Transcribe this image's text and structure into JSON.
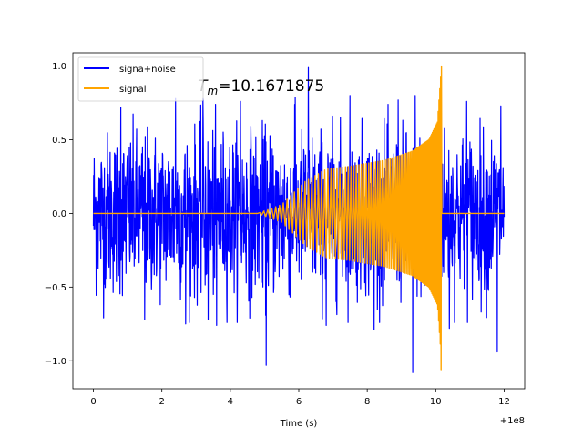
{
  "chart_data": {
    "type": "line",
    "xlabel": "Time (s)",
    "ylabel": "",
    "xlim": [
      -0.6,
      12.6
    ],
    "ylim": [
      -1.19,
      1.09
    ],
    "x_ticks": [
      0,
      2,
      4,
      6,
      8,
      10,
      12
    ],
    "y_ticks": [
      -1.0,
      -0.5,
      0.0,
      0.5,
      1.0
    ],
    "x_offset_label": "+1e8",
    "grid": false,
    "legend_position": "top-left",
    "annotation": {
      "prefix": "T",
      "subscript": "m",
      "value": "=10.1671875",
      "x": 3.05,
      "y": 0.83
    },
    "series": [
      {
        "name": "signa+noise",
        "color": "#0000ff",
        "x_range": [
          0.0,
          12.0
        ],
        "sample_step": 0.008,
        "noise_sigma": 0.27,
        "extremes": [
          {
            "x": 0.8,
            "y": 0.72
          },
          {
            "x": 1.5,
            "y": -0.72
          },
          {
            "x": 2.4,
            "y": 0.78
          },
          {
            "x": 2.7,
            "y": -0.75
          },
          {
            "x": 3.2,
            "y": 0.78
          },
          {
            "x": 3.35,
            "y": -0.72
          },
          {
            "x": 3.6,
            "y": -0.76
          },
          {
            "x": 4.3,
            "y": 0.76
          },
          {
            "x": 5.05,
            "y": -1.03
          },
          {
            "x": 5.9,
            "y": 0.79
          },
          {
            "x": 6.28,
            "y": 0.99
          },
          {
            "x": 6.8,
            "y": -0.76
          },
          {
            "x": 7.5,
            "y": 0.8
          },
          {
            "x": 8.2,
            "y": -0.79
          },
          {
            "x": 8.9,
            "y": 0.77
          },
          {
            "x": 9.33,
            "y": -1.08
          },
          {
            "x": 9.4,
            "y": 0.8
          },
          {
            "x": 10.4,
            "y": -0.78
          },
          {
            "x": 10.9,
            "y": 0.76
          },
          {
            "x": 11.8,
            "y": -0.94
          },
          {
            "x": 11.9,
            "y": 0.73
          }
        ]
      },
      {
        "name": "signal",
        "color": "#ffa500",
        "x_range": [
          0.0,
          12.0
        ],
        "chirp_start": 4.8,
        "merger_time": 10.1671875,
        "envelope": [
          {
            "x": 4.8,
            "a": 0.0
          },
          {
            "x": 5.5,
            "a": 0.06
          },
          {
            "x": 6.2,
            "a": 0.22
          },
          {
            "x": 6.8,
            "a": 0.3
          },
          {
            "x": 7.5,
            "a": 0.32
          },
          {
            "x": 8.5,
            "a": 0.36
          },
          {
            "x": 9.3,
            "a": 0.42
          },
          {
            "x": 9.8,
            "a": 0.5
          },
          {
            "x": 10.05,
            "a": 0.62
          },
          {
            "x": 10.1671875,
            "a": 1.0
          }
        ],
        "peak": {
          "max": 1.0,
          "min": -1.06
        }
      }
    ]
  }
}
